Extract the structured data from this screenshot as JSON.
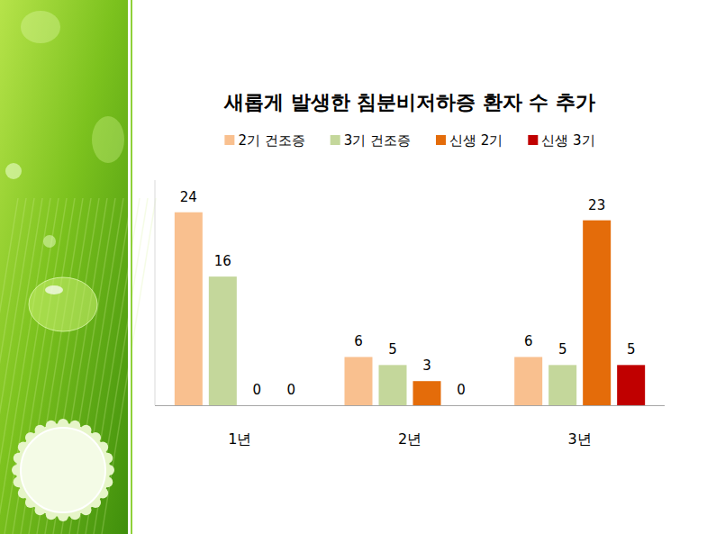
{
  "chart_data": {
    "type": "bar",
    "title": "새롭게 발생한 침분비저하증 환자 수 추가",
    "categories": [
      "1년",
      "2년",
      "3년"
    ],
    "series": [
      {
        "name": "2기 건조증",
        "color": "#f9c08f",
        "values": [
          24,
          6,
          6
        ]
      },
      {
        "name": "3기 건조증",
        "color": "#c4d79b",
        "values": [
          16,
          5,
          5
        ]
      },
      {
        "name": "신생 2기",
        "color": "#e46c0a",
        "values": [
          0,
          3,
          23
        ]
      },
      {
        "name": "신생 3기",
        "color": "#c00000",
        "values": [
          0,
          0,
          5
        ]
      }
    ],
    "ylim": [
      0,
      28
    ],
    "grid": false,
    "legend": "top",
    "data_labels": true,
    "tick_labels": "x"
  }
}
